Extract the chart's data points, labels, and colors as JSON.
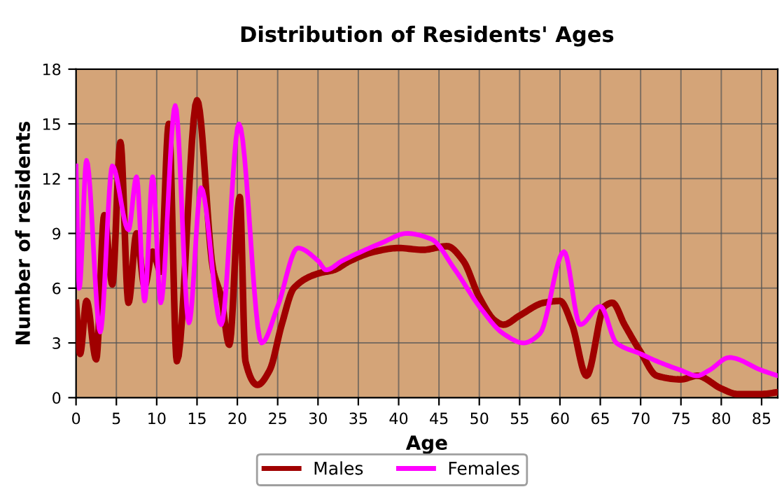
{
  "chart_data": {
    "type": "line",
    "title": "Distribution of Residents' Ages",
    "xlabel": "Age",
    "ylabel": "Number of residents",
    "xlim": [
      0,
      87
    ],
    "xticks": [
      0,
      5,
      10,
      15,
      20,
      25,
      30,
      35,
      40,
      45,
      50,
      55,
      60,
      65,
      70,
      75,
      80,
      85
    ],
    "ylim": [
      0,
      18
    ],
    "yticks": [
      0,
      3,
      6,
      9,
      12,
      15,
      18
    ],
    "grid": true,
    "legend": "bottom",
    "line_style": "solid",
    "marker": "none",
    "series": [
      {
        "name": "Males",
        "color": "#a00000",
        "x": [
          0,
          0.5,
          1.3,
          2.5,
          3.5,
          4.5,
          5.5,
          6.5,
          7.5,
          8.5,
          9.5,
          10.5,
          11.5,
          12.5,
          15,
          17,
          18,
          19,
          20.3,
          21,
          22.5,
          24,
          25.5,
          27,
          30,
          32,
          34,
          37,
          40,
          43,
          46,
          48,
          50,
          52,
          53,
          55,
          58,
          60,
          61.5,
          63.3,
          65.5,
          66.5,
          68,
          70,
          72,
          75,
          77,
          80,
          82,
          85,
          87
        ],
        "values": [
          5.2,
          2.4,
          5.3,
          2.1,
          10,
          6.2,
          14,
          5.2,
          9,
          6.1,
          8,
          6.9,
          15,
          2,
          16.3,
          7,
          5.5,
          2.9,
          11,
          2,
          0.7,
          1.5,
          4,
          6,
          6.8,
          7,
          7.5,
          8,
          8.2,
          8.1,
          8.3,
          7.5,
          5.5,
          4.2,
          4,
          4.5,
          5.2,
          5.3,
          4,
          1.2,
          5,
          5.2,
          4,
          2.5,
          1.2,
          1,
          1.2,
          0.5,
          0.2,
          0.2,
          0.3
        ]
      },
      {
        "name": "Females",
        "color": "#ff00ff",
        "x": [
          0,
          0.4,
          1.3,
          3,
          4.5,
          6.5,
          7.5,
          8.5,
          9.5,
          10.5,
          12.3,
          14,
          15.5,
          18,
          20.2,
          23,
          25,
          27.5,
          30,
          31,
          33,
          38,
          41,
          44,
          47,
          50,
          53,
          55.5,
          57.5,
          60.5,
          62.5,
          65,
          67,
          70,
          72,
          75,
          77,
          78.5,
          81,
          85,
          87
        ],
        "values": [
          12.7,
          6,
          13,
          3.6,
          12.7,
          9.2,
          12.1,
          5.3,
          12.1,
          5.2,
          16,
          4.1,
          11.5,
          4,
          15,
          3,
          5,
          8.2,
          7.5,
          7,
          7.5,
          8.5,
          9,
          8.7,
          7,
          5,
          3.5,
          3,
          3.5,
          8,
          4,
          5,
          3,
          2.4,
          2,
          1.5,
          1.2,
          1.5,
          2.2,
          1.5,
          1.2
        ]
      }
    ]
  }
}
